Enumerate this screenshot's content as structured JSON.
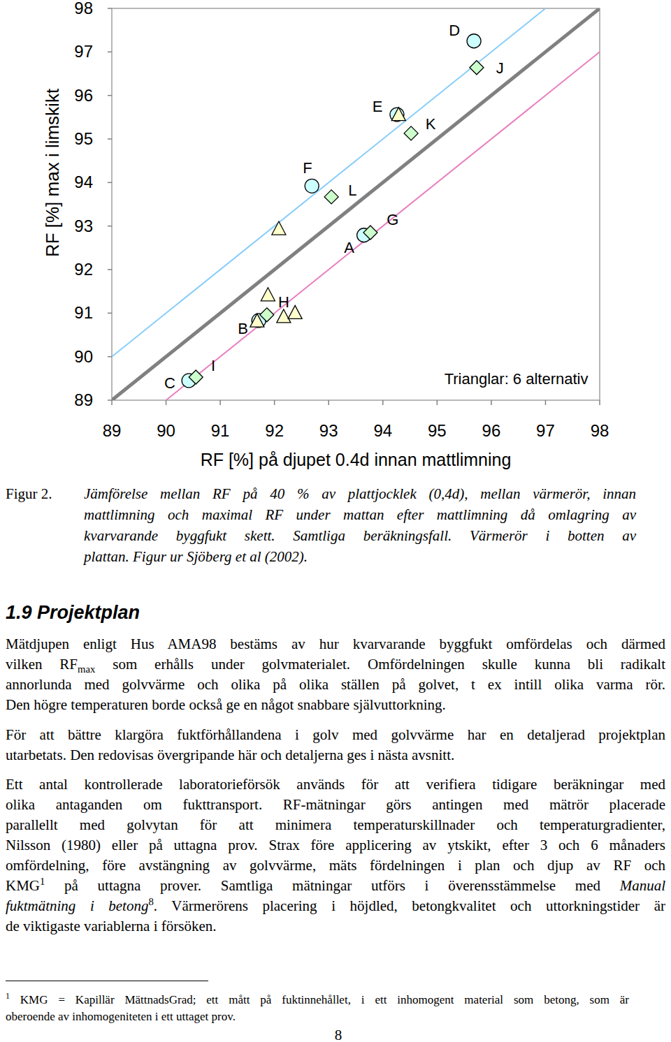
{
  "chart_data": {
    "type": "scatter",
    "x_label": "RF [%] på djupet 0.4d innan mattlimning",
    "y_label": "RF [%] max i limskikt",
    "xlim": [
      89,
      98
    ],
    "ylim": [
      89,
      98
    ],
    "xticks": [
      89,
      90,
      91,
      92,
      93,
      94,
      95,
      96,
      97,
      98
    ],
    "yticks": [
      89,
      90,
      91,
      92,
      93,
      94,
      95,
      96,
      97,
      98
    ],
    "grid": false,
    "series": [
      {
        "type": "line",
        "color": "#808080",
        "line_style": "bold",
        "x": [
          89,
          98
        ],
        "values": [
          89,
          98
        ]
      },
      {
        "type": "line",
        "color": "#87cefa",
        "line_style": "solid",
        "x": [
          89,
          97
        ],
        "values": [
          90,
          98
        ]
      },
      {
        "type": "line",
        "color": "#e87fbf",
        "line_style": "solid",
        "x": [
          90,
          98
        ],
        "values": [
          89,
          97
        ]
      },
      {
        "type": "scatter",
        "color": "#ccffff",
        "marker": "circle",
        "x": [
          90.42,
          91.71,
          92.69,
          93.65,
          94.26,
          95.68
        ],
        "values": [
          89.45,
          90.83,
          93.92,
          92.79,
          95.56,
          97.25
        ]
      },
      {
        "type": "scatter",
        "color": "#ccffcc",
        "marker": "diamond",
        "x": [
          90.55,
          91.86,
          93.05,
          93.77,
          94.52,
          95.73
        ],
        "values": [
          89.53,
          90.96,
          93.67,
          92.85,
          95.13,
          96.64
        ]
      },
      {
        "type": "scatter",
        "color": "#ffffcc",
        "marker": "triangle",
        "x": [
          92.08,
          91.88,
          91.68,
          92.17,
          92.38,
          94.29
        ],
        "values": [
          92.93,
          91.41,
          90.81,
          90.91,
          91.0,
          95.55
        ]
      }
    ],
    "annotations": [
      {
        "text": "D",
        "x": 95.32,
        "y": 97.5
      },
      {
        "text": "J",
        "x": 96.16,
        "y": 96.64
      },
      {
        "text": "E",
        "x": 93.9,
        "y": 95.75
      },
      {
        "text": "K",
        "x": 94.88,
        "y": 95.35
      },
      {
        "text": "F",
        "x": 92.61,
        "y": 94.34
      },
      {
        "text": "L",
        "x": 93.44,
        "y": 93.83
      },
      {
        "text": "G",
        "x": 94.18,
        "y": 93.15
      },
      {
        "text": "A",
        "x": 93.38,
        "y": 92.51
      },
      {
        "text": "H",
        "x": 92.17,
        "y": 91.26
      },
      {
        "text": "B",
        "x": 91.42,
        "y": 90.65
      },
      {
        "text": "I",
        "x": 90.87,
        "y": 89.8
      },
      {
        "text": "C",
        "x": 90.07,
        "y": 89.4
      },
      {
        "text": "Trianglar: 6 alternativ",
        "x": 96.46,
        "y": 89.5
      }
    ]
  },
  "figure_label": "Figur 2.",
  "caption": [
    [
      "Jämförelse mellan RF på 40 % av plattjocklek (0,4d), mellan värmerör, innan"
    ],
    [
      "mattlimning och maximal RF under mattan efter mattlimning då omlagring av"
    ],
    [
      "kvarvarande byggfukt skett. Samtliga beräkningsfall. Värmerör i botten av"
    ],
    [
      "plattan. Figur ur Sjöberg et al (2002)."
    ]
  ],
  "section": {
    "heading": "1.9 Projektplan",
    "paragraphs": [
      [
        [
          "Mätdjupen enligt Hus AMA98 bestäms av hur kvarvarande byggfukt omfördelas och därmed"
        ],
        [
          "vilken RF",
          {
            "text": "max",
            "style": "sub"
          },
          " som erhålls under golvmaterialet. Omfördelningen skulle kunna bli radikalt"
        ],
        [
          "annorlunda med golvvärme och olika på olika ställen på golvet, t ex intill olika varma rör."
        ],
        [
          "Den högre temperaturen borde också ge en något snabbare självuttorkning."
        ]
      ],
      [
        [
          "För att bättre klargöra fuktförhållandena i golv med golvvärme har en detaljerad projektplan"
        ],
        [
          "utarbetats. Den redovisas övergripande här och detaljerna ges i nästa avsnitt."
        ]
      ],
      [
        [
          "Ett antal kontrollerade laboratorieförsök används för att verifiera tidigare beräkningar med"
        ],
        [
          "olika antaganden om fukttransport. RF-mätningar görs antingen med mätrör placerade"
        ],
        [
          "parallellt med golvytan för att minimera temperaturskillnader och temperaturgradienter,"
        ],
        [
          "Nilsson (1980) eller på uttagna prov. Strax före applicering av ytskikt, efter 3 och 6 månaders"
        ],
        [
          "omfördelning, före avstängning av golvvärme, mäts fördelningen i plan och djup av RF och"
        ],
        [
          "KMG",
          {
            "text": "1",
            "style": "sup"
          },
          " på uttagna prover. Samtliga mätningar utförs i överensstämmelse med ",
          {
            "text": "Manual",
            "style": "italic"
          }
        ],
        [
          {
            "text": "fuktmätning i betong",
            "style": "italic"
          },
          {
            "text": "8",
            "style": "sup"
          },
          ". Värmerörens placering i höjdled, betongkvalitet och uttorkningstider är"
        ],
        [
          "de viktigaste variablerna i försöken."
        ]
      ]
    ]
  },
  "footnote": [
    [
      {
        "text": "1",
        "style": "sup"
      },
      " KMG = Kapillär MättnadsGrad; ett mått på fuktinnehållet, i ett inhomogent material som betong, som är"
    ],
    [
      "oberoende av inhomogeniteten i ett uttaget prov."
    ]
  ],
  "page_number": "8"
}
